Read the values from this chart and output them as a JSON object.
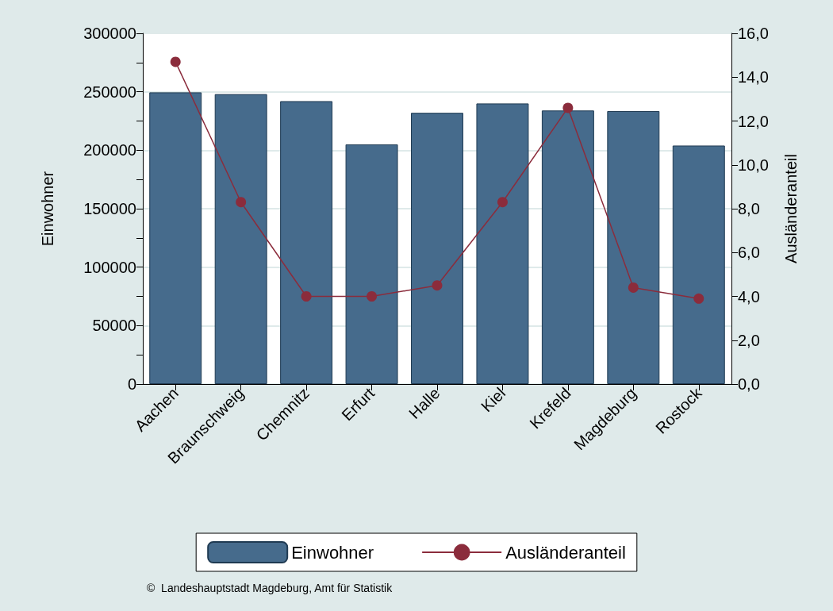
{
  "chart_data": {
    "type": "bar",
    "categories": [
      "Aachen",
      "Braunschweig",
      "Chemnitz",
      "Erfurt",
      "Halle",
      "Kiel",
      "Krefeld",
      "Magdeburg",
      "Rostock"
    ],
    "ylabel": "Einwohner",
    "y2label": "Ausländeranteil",
    "series": [
      {
        "name": "Einwohner",
        "color": "#466b8c",
        "values": [
          249500,
          248000,
          242000,
          205000,
          232000,
          240000,
          234000,
          233500,
          204000
        ]
      },
      {
        "name": "Ausländeranteil",
        "type": "line",
        "axis": "y2",
        "color": "#8b2c3c",
        "marker": "circle",
        "values": [
          14.7,
          8.3,
          4.0,
          4.0,
          4.5,
          8.3,
          12.6,
          4.4,
          3.9
        ]
      }
    ],
    "ylim": [
      0,
      300000
    ],
    "yticks": [
      0,
      {
        "value": 25000,
        "label": null
      },
      50000,
      {
        "value": 75000,
        "label": null
      },
      100000,
      {
        "value": 125000,
        "label": null
      },
      150000,
      {
        "value": 175000,
        "label": null
      },
      200000,
      {
        "value": 225000,
        "label": null
      },
      250000,
      {
        "value": 275000,
        "label": null
      },
      300000
    ],
    "y2lim": [
      0,
      16
    ],
    "y2ticks": [
      {
        "value": 0,
        "label": "0,0"
      },
      {
        "value": 2,
        "label": "2,0"
      },
      {
        "value": 4,
        "label": "4,0"
      },
      {
        "value": 6,
        "label": "6,0"
      },
      {
        "value": 8,
        "label": "8,0"
      },
      {
        "value": 10,
        "label": "10,0"
      },
      {
        "value": 12,
        "label": "12,0"
      },
      {
        "value": 14,
        "label": "14,0"
      },
      {
        "value": 16,
        "label": "16,0"
      }
    ],
    "grid": "y",
    "legend": "bottom",
    "annotations": [
      "©  Landeshauptstadt Magdeburg, Amt für Statistik"
    ]
  }
}
